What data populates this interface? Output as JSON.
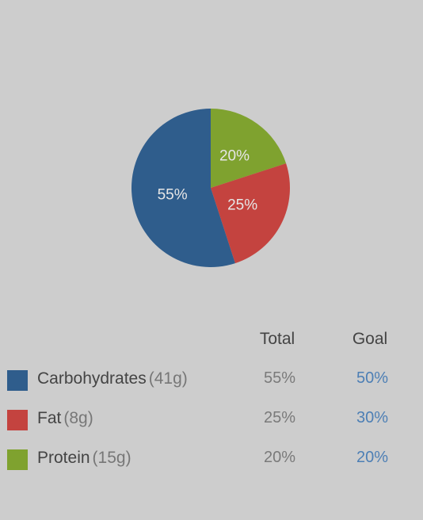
{
  "chart_data": {
    "type": "pie",
    "slices": [
      {
        "label": "Carbohydrates",
        "value": 55,
        "percent_label": "55%",
        "color": "#2f5d8c"
      },
      {
        "label": "Fat",
        "value": 25,
        "percent_label": "25%",
        "color": "#c4433f"
      },
      {
        "label": "Protein",
        "value": 20,
        "percent_label": "20%",
        "color": "#7fa22f"
      }
    ]
  },
  "table": {
    "headers": {
      "total": "Total",
      "goal": "Goal"
    },
    "rows": [
      {
        "name": "Carbohydrates",
        "amount": "(41g)",
        "total": "55%",
        "goal": "50%",
        "color": "#2f5d8c"
      },
      {
        "name": "Fat",
        "amount": "(8g)",
        "total": "25%",
        "goal": "30%",
        "color": "#c4433f"
      },
      {
        "name": "Protein",
        "amount": "(15g)",
        "total": "20%",
        "goal": "20%",
        "color": "#7fa22f"
      }
    ]
  }
}
